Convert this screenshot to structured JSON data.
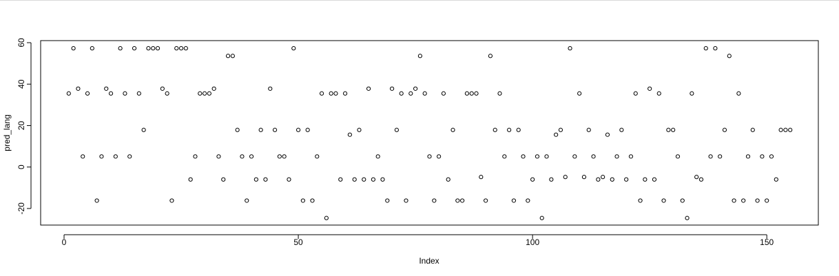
{
  "chart_data": {
    "type": "scatter",
    "xlabel": "Index",
    "ylabel": "pred_lang",
    "xlim": [
      -5,
      161
    ],
    "ylim": [
      -28,
      61
    ],
    "x_ticks": [
      0,
      50,
      100,
      150
    ],
    "y_ticks": [
      -20,
      0,
      20,
      40,
      60
    ],
    "x_tick_labels": [
      "0",
      "50",
      "100",
      "150"
    ],
    "y_tick_labels": [
      "-20",
      "0",
      "20",
      "40",
      "60"
    ],
    "grid": false,
    "marker": "open-circle",
    "series": [
      {
        "x": [
          1,
          2,
          3,
          4,
          5,
          6,
          7,
          8,
          9,
          10,
          11,
          12,
          13,
          14,
          15,
          16,
          17,
          18,
          19,
          20,
          21,
          22,
          23,
          24,
          25,
          26,
          27,
          28,
          29,
          30,
          31,
          32,
          33,
          34,
          35,
          36,
          37,
          38,
          39,
          40,
          41,
          42,
          43,
          44,
          45,
          46,
          47,
          48,
          49,
          50,
          51,
          52,
          53,
          54,
          55,
          56,
          57,
          58,
          59,
          60,
          61,
          62,
          63,
          64,
          65,
          66,
          67,
          68,
          69,
          70,
          71,
          72,
          73,
          74,
          75,
          76,
          77,
          78,
          79,
          80,
          81,
          82,
          83,
          84,
          85,
          86,
          87,
          88,
          89,
          90,
          91,
          92,
          93,
          94,
          95,
          96,
          97,
          98,
          99,
          100,
          101,
          102,
          103,
          104,
          105,
          106,
          107,
          108,
          109,
          110,
          111,
          112,
          113,
          114,
          115,
          116,
          117,
          118,
          119,
          120,
          121,
          122,
          123,
          124,
          125,
          126,
          127,
          128,
          129,
          130,
          131,
          132,
          133,
          134,
          135,
          136,
          137,
          138,
          139,
          140,
          141,
          142,
          143,
          144,
          145,
          146,
          147,
          148,
          149,
          150,
          151,
          152,
          153,
          154,
          155
        ],
        "y": [
          35.5,
          57.3,
          37.8,
          5.1,
          35.5,
          57.3,
          -16.2,
          5.1,
          37.8,
          35.5,
          5.1,
          57.3,
          35.5,
          5.1,
          57.3,
          35.5,
          17.9,
          57.3,
          57.3,
          57.3,
          37.8,
          35.5,
          -16.2,
          57.3,
          57.3,
          57.3,
          -6.0,
          5.1,
          35.5,
          35.5,
          35.5,
          37.8,
          5.1,
          -6.0,
          53.6,
          53.6,
          17.9,
          5.1,
          -16.2,
          5.1,
          -6.0,
          17.9,
          -6.0,
          37.8,
          17.9,
          5.1,
          5.1,
          -6.0,
          57.3,
          17.9,
          -16.2,
          17.9,
          -16.2,
          5.1,
          35.5,
          -24.6,
          35.5,
          35.5,
          -6.0,
          35.5,
          15.6,
          -6.0,
          17.9,
          -6.0,
          37.8,
          -6.0,
          5.1,
          -6.0,
          -16.2,
          37.8,
          17.9,
          35.5,
          -16.2,
          35.5,
          37.8,
          53.6,
          35.5,
          5.1,
          -16.2,
          5.1,
          35.5,
          -6.0,
          17.9,
          -16.2,
          -16.2,
          35.5,
          35.5,
          35.5,
          -4.8,
          -16.2,
          53.6,
          17.9,
          35.5,
          5.1,
          17.9,
          -16.2,
          17.9,
          5.1,
          -16.2,
          -6.0,
          5.1,
          -24.6,
          5.1,
          -6.0,
          15.6,
          17.9,
          -4.8,
          57.3,
          5.1,
          35.5,
          -4.8,
          17.9,
          5.1,
          -6.0,
          -4.8,
          15.6,
          -6.0,
          5.1,
          17.9,
          -6.0,
          5.1,
          35.5,
          -16.2,
          -6.0,
          37.8,
          -6.0,
          35.5,
          -16.2,
          17.9,
          17.9,
          5.1,
          -16.2,
          -24.6,
          35.5,
          -4.8,
          -6.0,
          57.3,
          5.1,
          57.3,
          5.1,
          17.9,
          53.6,
          -16.2,
          35.5,
          -16.2,
          5.1,
          17.9,
          -16.2,
          5.1,
          -16.2,
          5.1,
          -6.0,
          17.9,
          17.9,
          17.9
        ]
      }
    ]
  }
}
